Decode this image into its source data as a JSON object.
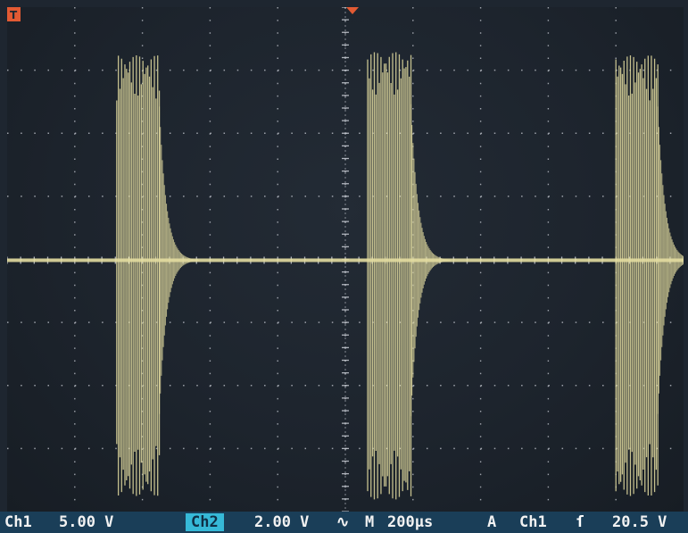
{
  "screen": {
    "trigger_marker": "T",
    "trace_color": "#e3dca0",
    "grid_color": "#c8ccd4",
    "background_color": "#1e2630"
  },
  "status": {
    "ch1_label": "Ch1",
    "ch1_scale": "5.00 V",
    "ch2_label": "Ch2",
    "ch2_scale": "2.00 V",
    "ch2_coupling": "∿",
    "timebase_label": "M",
    "timebase_value": "200µs",
    "trigger_mode": "A",
    "trigger_source": "Ch1",
    "trigger_slope_icon": "rising-edge-icon",
    "trigger_slope_glyph": "ſ",
    "trigger_level": "20.5 V"
  },
  "chart_data": {
    "type": "line",
    "title": "",
    "xlabel": "",
    "ylabel": "",
    "time_per_div_us": 200,
    "volts_per_div": 5.0,
    "divisions_x": 10,
    "divisions_y": 8,
    "series": [
      {
        "bursts": [
          {
            "start_div": 1.62,
            "end_div": 2.25,
            "peak_div": 3.25
          },
          {
            "start_div": 5.33,
            "end_div": 5.97,
            "peak_div": 3.3
          },
          {
            "start_div": 9.0,
            "end_div": 9.62,
            "peak_div": 3.25
          }
        ],
        "ringdown_decay_div": 0.6,
        "baseline_div": 0
      }
    ]
  }
}
